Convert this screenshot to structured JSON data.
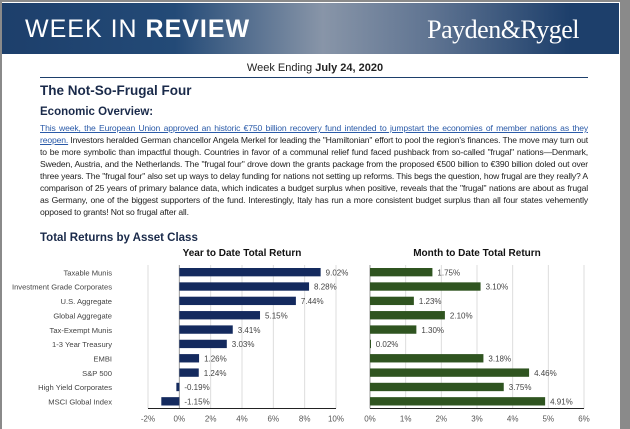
{
  "header": {
    "title_light": "WEEK IN ",
    "title_bold": "REVIEW",
    "brand": "Payden&Rygel"
  },
  "week": {
    "label": "Week Ending ",
    "date": "July 24, 2020"
  },
  "title": "The Not-So-Frugal Four",
  "overview": {
    "heading": "Economic Overview:",
    "link_text": "This week, the European Union approved an historic €750 billion recovery fund intended to jumpstart the economies of member nations as they reopen.",
    "body": " Investors heralded German chancellor Angela Merkel for leading the \"Hamiltonian\" effort to pool the region's finances. The move may turn out to be more symbolic than impactful though. Countries in favor of a communal relief fund faced pushback from so-called \"frugal\" nations—Denmark, Sweden, Austria, and the Netherlands. The \"frugal four\" drove down the grants package from the proposed €500 billion to €390 billion doled out over three years. The \"frugal four\" also set up ways to delay funding for nations not setting up reforms. This begs the question, how frugal are they really? A comparison of 25 years of primary balance data, which indicates a budget surplus when positive, reveals that the \"frugal\" nations are about as frugal as Germany, one of the biggest supporters of the fund. Interestingly, Italy has run a more consistent budget surplus than all four states vehemently opposed to grants! Not so frugal after all."
  },
  "section_title": "Total Returns by Asset Class",
  "chart_data": [
    {
      "type": "bar",
      "orientation": "horizontal",
      "title": "Year to Date Total Return",
      "categories": [
        "Taxable Munis",
        "Investment Grade Corporates",
        "U.S. Aggregate",
        "Global Aggregate",
        "Tax-Exempt Munis",
        "1-3 Year Treasury",
        "EMBI",
        "S&P 500",
        "High Yield Corporates",
        "MSCI Global Index"
      ],
      "values": [
        9.02,
        8.28,
        7.44,
        5.15,
        3.41,
        3.03,
        1.26,
        1.24,
        -0.19,
        -1.15
      ],
      "data_labels": [
        "9.02%",
        "8.28%",
        "7.44%",
        "5.15%",
        "3.41%",
        "3.03%",
        "1.26%",
        "1.24%",
        "-0.19%",
        "-1.15%"
      ],
      "xlim": [
        -2,
        10
      ],
      "ticks": [
        "-2%",
        "0%",
        "2%",
        "4%",
        "6%",
        "8%",
        "10%"
      ],
      "tick_values": [
        -2,
        0,
        2,
        4,
        6,
        8,
        10
      ],
      "grid": true,
      "color": "#142a5e"
    },
    {
      "type": "bar",
      "orientation": "horizontal",
      "title": "Month to Date Total Return",
      "categories": [
        "Taxable Munis",
        "Investment Grade Corporates",
        "U.S. Aggregate",
        "Global Aggregate",
        "Tax-Exempt Munis",
        "1-3 Year Treasury",
        "EMBI",
        "S&P 500",
        "High Yield Corporates",
        "MSCI Global Index"
      ],
      "values": [
        1.75,
        3.1,
        1.23,
        2.1,
        1.3,
        0.02,
        3.18,
        4.46,
        3.75,
        4.91
      ],
      "data_labels": [
        "1.75%",
        "3.10%",
        "1.23%",
        "2.10%",
        "1.30%",
        "0.02%",
        "3.18%",
        "4.46%",
        "3.75%",
        "4.91%"
      ],
      "xlim": [
        0,
        6
      ],
      "ticks": [
        "0%",
        "1%",
        "2%",
        "3%",
        "4%",
        "5%",
        "6%"
      ],
      "tick_values": [
        0,
        1,
        2,
        3,
        4,
        5,
        6
      ],
      "grid": true,
      "color": "#2f5420"
    }
  ]
}
